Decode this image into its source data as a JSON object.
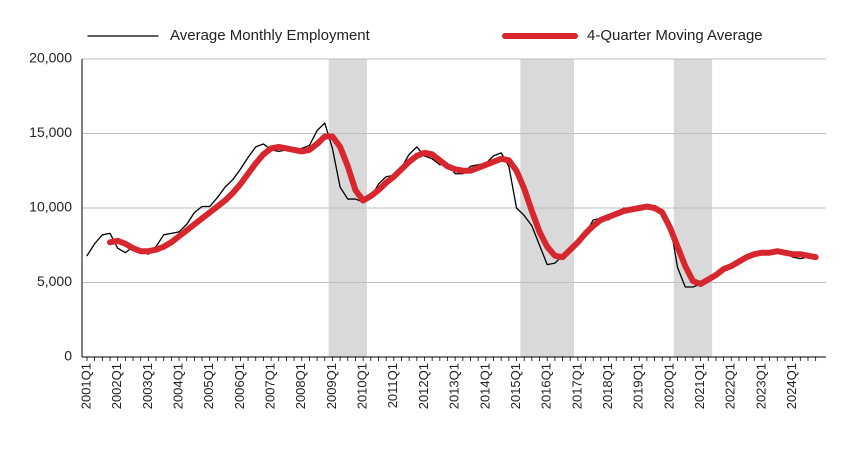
{
  "chart_data": {
    "type": "line",
    "categories": [
      "2001Q1",
      null,
      null,
      null,
      "2002Q1",
      null,
      null,
      null,
      "2003Q1",
      null,
      null,
      null,
      "2004Q1",
      null,
      null,
      null,
      "2005Q1",
      null,
      null,
      null,
      "2006Q1",
      null,
      null,
      null,
      "2007Q1",
      null,
      null,
      null,
      "2008Q1",
      null,
      null,
      null,
      "2009Q1",
      null,
      null,
      null,
      "2010Q1",
      null,
      null,
      null,
      "2011Q1",
      null,
      null,
      null,
      "2012Q1",
      null,
      null,
      null,
      "2013Q1",
      null,
      null,
      null,
      "2014Q1",
      null,
      null,
      null,
      "2015Q1",
      null,
      null,
      null,
      "2016Q1",
      null,
      null,
      null,
      "2017Q1",
      null,
      null,
      null,
      "2018Q1",
      null,
      null,
      null,
      "2019Q1",
      null,
      null,
      null,
      "2020Q1",
      null,
      null,
      null,
      "2021Q1",
      null,
      null,
      null,
      "2022Q1",
      null,
      null,
      null,
      "2023Q1",
      null,
      null,
      null,
      "2024Q1",
      null,
      null,
      null
    ],
    "series": [
      {
        "name": "Average Monthly Employment",
        "color": "#000000",
        "width": 1.3,
        "values": [
          6800,
          7600,
          8200,
          8300,
          7300,
          7000,
          7400,
          7100,
          6900,
          7400,
          8200,
          8300,
          8400,
          8900,
          9700,
          10100,
          10100,
          10700,
          11400,
          11900,
          12600,
          13400,
          14100,
          14300,
          13900,
          13800,
          13900,
          13800,
          14000,
          14200,
          15200,
          15700,
          14000,
          11400,
          10600,
          10600,
          10400,
          10700,
          11600,
          12100,
          12200,
          12700,
          13600,
          14100,
          13500,
          13300,
          12900,
          13000,
          12300,
          12300,
          12800,
          12900,
          13000,
          13500,
          13700,
          12800,
          10000,
          9500,
          8800,
          7500,
          6200,
          6300,
          6800,
          7400,
          7800,
          8300,
          9200,
          9300,
          9200,
          9600,
          10000,
          9900,
          10000,
          10100,
          10000,
          9900,
          9000,
          6000,
          4700,
          4700,
          4900,
          5300,
          5600,
          6000,
          6000,
          6300,
          6800,
          7000,
          6900,
          7000,
          7100,
          7000,
          6700,
          6600,
          6700,
          6700
        ]
      },
      {
        "name": "4-Quarter Moving Average",
        "color": "#d7262e",
        "width": 6,
        "values": [
          null,
          null,
          null,
          7700,
          7800,
          7600,
          7300,
          7100,
          7100,
          7200,
          7400,
          7700,
          8100,
          8500,
          8900,
          9300,
          9700,
          10100,
          10500,
          11000,
          11600,
          12300,
          13000,
          13600,
          14000,
          14100,
          14000,
          13900,
          13800,
          13900,
          14300,
          14800,
          14800,
          14100,
          12800,
          11200,
          10500,
          10800,
          11200,
          11700,
          12100,
          12600,
          13100,
          13500,
          13700,
          13600,
          13200,
          12800,
          12600,
          12500,
          12500,
          12700,
          12900,
          13100,
          13300,
          13200,
          12500,
          11300,
          9800,
          8400,
          7400,
          6800,
          6700,
          7200,
          7700,
          8300,
          8800,
          9200,
          9400,
          9600,
          9800,
          9900,
          10000,
          10100,
          10000,
          9700,
          8700,
          7400,
          6100,
          5100,
          4900,
          5200,
          5500,
          5900,
          6100,
          6400,
          6700,
          6900,
          7000,
          7000,
          7100,
          7000,
          6900,
          6900,
          6800,
          6700
        ]
      }
    ],
    "shaded_spans": [
      [
        32,
        37
      ],
      [
        57,
        64
      ],
      [
        77,
        82
      ]
    ],
    "shade_color": "#d9d9d9",
    "ylim": [
      0,
      20000
    ],
    "yticks": [
      0,
      {
        "value": 5000,
        "label": "5,000"
      },
      {
        "value": 10000,
        "label": "10,000"
      },
      {
        "value": 15000,
        "label": "15,000"
      },
      {
        "value": 20000,
        "label": "20,000"
      }
    ],
    "grid": true
  }
}
